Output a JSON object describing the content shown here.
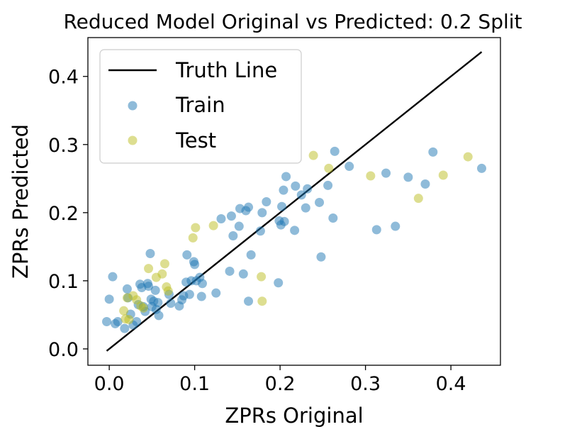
{
  "chart_data": {
    "type": "scatter",
    "title": "Reduced Model Original vs Predicted: 0.2 Split",
    "xlabel": "ZPRs Original",
    "ylabel": "ZPRs Predicted",
    "xlim": [
      -0.025,
      0.458
    ],
    "ylim": [
      -0.024,
      0.457
    ],
    "xticks": [
      0.0,
      0.1,
      0.2,
      0.3,
      0.4
    ],
    "yticks": [
      0.0,
      0.1,
      0.2,
      0.3,
      0.4
    ],
    "xtick_labels": [
      "0.0",
      "0.1",
      "0.2",
      "0.3",
      "0.4"
    ],
    "ytick_labels": [
      "0.0",
      "0.1",
      "0.2",
      "0.3",
      "0.4"
    ],
    "grid": false,
    "legend_position": "top-left",
    "truth_line": {
      "name": "Truth Line",
      "color": "#000000",
      "x": [
        -0.003,
        0.436
      ],
      "y": [
        -0.003,
        0.436
      ]
    },
    "series": [
      {
        "name": "Train",
        "color": "#1f77b4",
        "points": [
          [
            -0.003,
            0.04
          ],
          [
            0.0,
            0.073
          ],
          [
            0.004,
            0.106
          ],
          [
            0.007,
            0.037
          ],
          [
            0.01,
            0.04
          ],
          [
            0.018,
            0.03
          ],
          [
            0.021,
            0.088
          ],
          [
            0.022,
            0.075
          ],
          [
            0.025,
            0.051
          ],
          [
            0.028,
            0.035
          ],
          [
            0.032,
            0.04
          ],
          [
            0.034,
            0.065
          ],
          [
            0.036,
            0.095
          ],
          [
            0.038,
            0.09
          ],
          [
            0.04,
            0.062
          ],
          [
            0.042,
            0.055
          ],
          [
            0.045,
            0.096
          ],
          [
            0.046,
            0.092
          ],
          [
            0.048,
            0.14
          ],
          [
            0.049,
            0.073
          ],
          [
            0.05,
            0.062
          ],
          [
            0.052,
            0.07
          ],
          [
            0.054,
            0.086
          ],
          [
            0.055,
            0.058
          ],
          [
            0.057,
            0.068
          ],
          [
            0.058,
            0.049
          ],
          [
            0.07,
            0.08
          ],
          [
            0.072,
            0.067
          ],
          [
            0.082,
            0.063
          ],
          [
            0.085,
            0.072
          ],
          [
            0.087,
            0.078
          ],
          [
            0.09,
            0.098
          ],
          [
            0.091,
            0.138
          ],
          [
            0.094,
            0.08
          ],
          [
            0.096,
            0.1
          ],
          [
            0.099,
            0.128
          ],
          [
            0.1,
            0.124
          ],
          [
            0.102,
            0.1
          ],
          [
            0.106,
            0.105
          ],
          [
            0.108,
            0.077
          ],
          [
            0.109,
            0.096
          ],
          [
            0.125,
            0.082
          ],
          [
            0.131,
            0.191
          ],
          [
            0.141,
            0.114
          ],
          [
            0.143,
            0.195
          ],
          [
            0.145,
            0.166
          ],
          [
            0.152,
            0.18
          ],
          [
            0.153,
            0.206
          ],
          [
            0.157,
            0.11
          ],
          [
            0.16,
            0.203
          ],
          [
            0.163,
            0.208
          ],
          [
            0.163,
            0.07
          ],
          [
            0.166,
            0.138
          ],
          [
            0.177,
            0.173
          ],
          [
            0.179,
            0.2
          ],
          [
            0.184,
            0.216
          ],
          [
            0.198,
            0.097
          ],
          [
            0.199,
            0.188
          ],
          [
            0.201,
            0.182
          ],
          [
            0.202,
            0.209
          ],
          [
            0.204,
            0.233
          ],
          [
            0.205,
            0.187
          ],
          [
            0.207,
            0.253
          ],
          [
            0.217,
            0.174
          ],
          [
            0.218,
            0.239
          ],
          [
            0.225,
            0.226
          ],
          [
            0.23,
            0.207
          ],
          [
            0.232,
            0.235
          ],
          [
            0.246,
            0.215
          ],
          [
            0.248,
            0.135
          ],
          [
            0.256,
            0.24
          ],
          [
            0.262,
            0.192
          ],
          [
            0.264,
            0.29
          ],
          [
            0.281,
            0.268
          ],
          [
            0.313,
            0.175
          ],
          [
            0.324,
            0.258
          ],
          [
            0.335,
            0.18
          ],
          [
            0.35,
            0.252
          ],
          [
            0.37,
            0.242
          ],
          [
            0.379,
            0.289
          ],
          [
            0.436,
            0.265
          ]
        ]
      },
      {
        "name": "Test",
        "color": "#bcbd22",
        "points": [
          [
            0.017,
            0.056
          ],
          [
            0.019,
            0.044
          ],
          [
            0.021,
            0.075
          ],
          [
            0.023,
            0.043
          ],
          [
            0.028,
            0.078
          ],
          [
            0.032,
            0.072
          ],
          [
            0.037,
            0.063
          ],
          [
            0.04,
            0.06
          ],
          [
            0.046,
            0.118
          ],
          [
            0.055,
            0.105
          ],
          [
            0.062,
            0.11
          ],
          [
            0.065,
            0.125
          ],
          [
            0.067,
            0.091
          ],
          [
            0.069,
            0.085
          ],
          [
            0.098,
            0.163
          ],
          [
            0.101,
            0.178
          ],
          [
            0.122,
            0.181
          ],
          [
            0.178,
            0.106
          ],
          [
            0.179,
            0.07
          ],
          [
            0.239,
            0.284
          ],
          [
            0.257,
            0.265
          ],
          [
            0.306,
            0.254
          ],
          [
            0.362,
            0.221
          ],
          [
            0.391,
            0.255
          ],
          [
            0.42,
            0.282
          ]
        ]
      }
    ],
    "legend": [
      {
        "label": "Truth Line",
        "marker": "line",
        "color": "#000000"
      },
      {
        "label": "Train",
        "marker": "circle",
        "color": "#1f77b4"
      },
      {
        "label": "Test",
        "marker": "circle",
        "color": "#bcbd22"
      }
    ]
  }
}
